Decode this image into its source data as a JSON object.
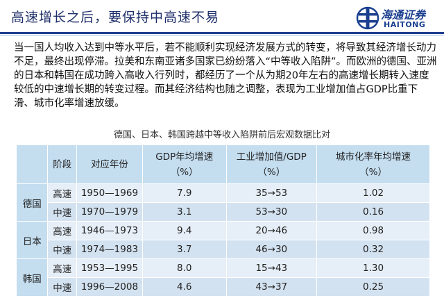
{
  "header": {
    "title": "高速增长之后，要保持中高速不易",
    "logo_cn": "海通证券",
    "logo_en": "HAITONG"
  },
  "intro": "当一国人均收入达到中等水平后，若不能顺利实现经济发展方式的转变，将导致其经济增长动力不足，最终出现停滞。拉美和东南亚诸多国家已纷纷落入“中等收入陷阱”。而欧洲的德国、亚洲的日本和韩国在成功跨入高收入行列时，都经历了一个从为期20年左右的高速增长期转入速度较低的中速增长期的转变过程。而其经济结构也随之调整，表现为工业增加值占GDP比重下滑、城市化率增速放缓。",
  "table": {
    "caption": "德国、日本、韩国跨越中等收入陷阱前后宏观数据比对",
    "headers": {
      "stage": "阶段",
      "years": "对应年份",
      "gdp": "GDP年均增速",
      "gdp_unit": "（%）",
      "industry": "工业增加值/GDP",
      "industry_unit": "（%）",
      "urban": "城市化率年均增速",
      "urban_unit": "（%）"
    },
    "rows": [
      {
        "country": "德国",
        "stage": "高速",
        "years": "1950—1969",
        "gdp": "7.9",
        "industry": "35→53",
        "urban": "1.02"
      },
      {
        "country": "德国",
        "stage": "中速",
        "years": "1970—1979",
        "gdp": "3.1",
        "industry": "53→30",
        "urban": "0.16"
      },
      {
        "country": "日本",
        "stage": "高速",
        "years": "1946—1973",
        "gdp": "9.4",
        "industry": "20→46",
        "urban": "0.98"
      },
      {
        "country": "日本",
        "stage": "中速",
        "years": "1974—1983",
        "gdp": "3.7",
        "industry": "46→30",
        "urban": "0.32"
      },
      {
        "country": "韩国",
        "stage": "高速",
        "years": "1953—1995",
        "gdp": "8.0",
        "industry": "15→43",
        "urban": "1.30"
      },
      {
        "country": "韩国",
        "stage": "中速",
        "years": "1996—2008",
        "gdp": "4.6",
        "industry": "43→37",
        "urban": "0.25"
      }
    ]
  },
  "colors": {
    "title_blue": "#1f2f6b",
    "rule_blue": "#1f3f8f",
    "header_cell": "#c4ddef",
    "row_light": "#e6eef7",
    "row_dark": "#d3e2f0"
  }
}
